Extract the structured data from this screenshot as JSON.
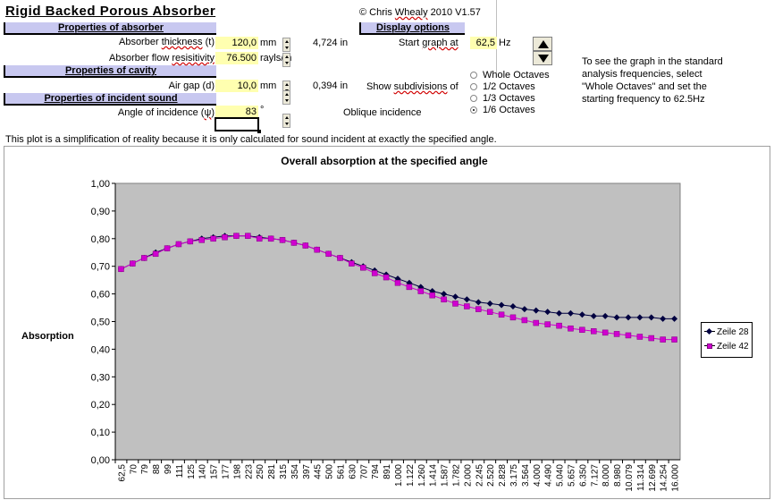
{
  "header": {
    "title": "Rigid Backed Porous Absorber",
    "copyright_prefix": "© Chris ",
    "copyright_name": "Whealy",
    "copyright_suffix": " 2010  V1.57"
  },
  "sections": {
    "absorber": "Properties of absorber",
    "display": "Display options",
    "cavity": "Properties of cavity",
    "sound": "Properties of incident sound"
  },
  "fields": {
    "thickness": {
      "label_a": "Absorber ",
      "label_b": "thickness",
      "label_c": " (t)",
      "value": "120,0",
      "unit": "mm",
      "inches": "4,724 in"
    },
    "resistivity": {
      "label_a": "Absorber flow ",
      "label_b": "resisitivity",
      "value": "76.500",
      "unit": "rayls/m"
    },
    "airgap": {
      "label": "Air gap (d)",
      "value": "10,0",
      "unit": "mm",
      "inches": "0,394 in"
    },
    "angle": {
      "label_a": "Angle of incidence (",
      "label_b": "ψ",
      "label_c": ")",
      "value": "83",
      "unit": "°",
      "mode": "Oblique incidence"
    }
  },
  "display": {
    "start_label_a": "Start ",
    "start_label_b": "graph at",
    "start_value": "62,5",
    "start_unit": "Hz",
    "subdiv_label_a": "Show ",
    "subdiv_label_b": "subdivisions",
    "subdiv_label_c": " of",
    "options": [
      "Whole Octaves",
      "1/2 Octaves",
      "1/3 Octaves",
      "1/6 Octaves"
    ],
    "selected": "1/6 Octaves",
    "info": [
      "To see the graph in the standard",
      "analysis frequencies, select",
      "\"Whole Octaves\" and set the",
      "starting frequency to 62.5Hz"
    ]
  },
  "note": "This plot is a simplification of reality because it is only calculated for sound incident at exactly the specified angle.",
  "chart_data": {
    "type": "line",
    "title": "Overall absorption at the specified angle",
    "ylabel": "Absorption",
    "xlabel": "",
    "ylim": [
      0,
      1
    ],
    "yticks": [
      "0,00",
      "0,10",
      "0,20",
      "0,30",
      "0,40",
      "0,50",
      "0,60",
      "0,70",
      "0,80",
      "0,90",
      "1,00"
    ],
    "categories": [
      "62,5",
      "70",
      "79",
      "88",
      "99",
      "111",
      "125",
      "140",
      "157",
      "177",
      "198",
      "223",
      "250",
      "281",
      "315",
      "354",
      "397",
      "445",
      "500",
      "561",
      "630",
      "707",
      "794",
      "891",
      "1.000",
      "1.122",
      "1.260",
      "1.414",
      "1.587",
      "1.782",
      "2.000",
      "2.245",
      "2.520",
      "2.828",
      "3.175",
      "3.564",
      "4.000",
      "4.490",
      "5.040",
      "5.657",
      "6.350",
      "7.127",
      "8.000",
      "8.980",
      "10.079",
      "11.314",
      "12.699",
      "14.254",
      "16.000"
    ],
    "legend_position": "right",
    "series": [
      {
        "name": "Zeile 28",
        "color": "#000040",
        "marker": "diamond",
        "values": [
          0.69,
          0.71,
          0.73,
          0.75,
          0.765,
          0.78,
          0.79,
          0.8,
          0.805,
          0.81,
          0.81,
          0.81,
          0.805,
          0.8,
          0.795,
          0.785,
          0.775,
          0.76,
          0.745,
          0.73,
          0.715,
          0.7,
          0.685,
          0.67,
          0.655,
          0.64,
          0.625,
          0.61,
          0.6,
          0.59,
          0.58,
          0.57,
          0.565,
          0.56,
          0.555,
          0.545,
          0.54,
          0.535,
          0.53,
          0.53,
          0.525,
          0.52,
          0.52,
          0.515,
          0.515,
          0.515,
          0.515,
          0.51,
          0.51
        ]
      },
      {
        "name": "Zeile 42",
        "color": "#d000d0",
        "marker": "square",
        "values": [
          0.69,
          0.71,
          0.73,
          0.745,
          0.765,
          0.78,
          0.79,
          0.795,
          0.8,
          0.805,
          0.81,
          0.81,
          0.8,
          0.8,
          0.795,
          0.785,
          0.775,
          0.76,
          0.745,
          0.73,
          0.71,
          0.695,
          0.675,
          0.66,
          0.64,
          0.625,
          0.61,
          0.595,
          0.58,
          0.565,
          0.555,
          0.545,
          0.535,
          0.525,
          0.515,
          0.505,
          0.495,
          0.49,
          0.485,
          0.475,
          0.47,
          0.465,
          0.46,
          0.455,
          0.45,
          0.445,
          0.44,
          0.435,
          0.435
        ]
      }
    ]
  }
}
